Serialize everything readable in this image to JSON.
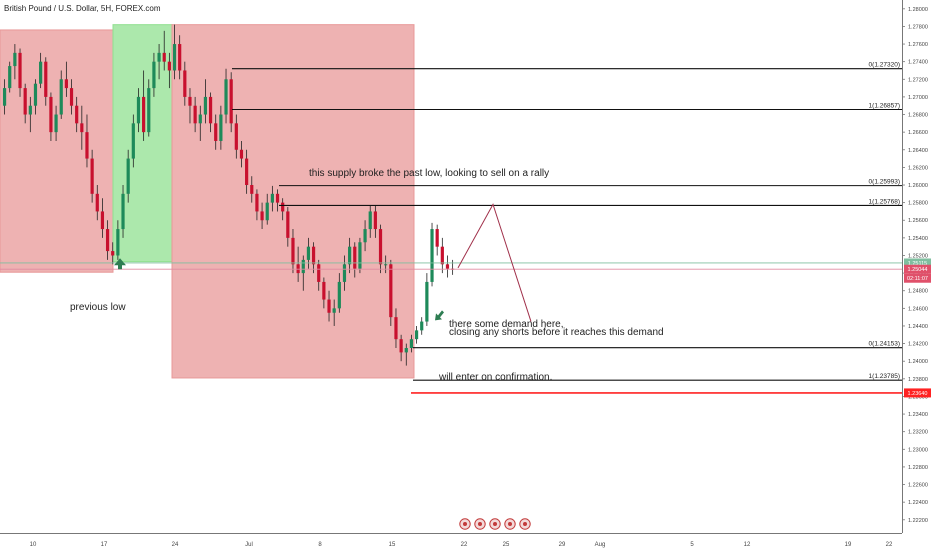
{
  "chart_data": {
    "type": "candlestick",
    "title": "British Pound / U.S. Dollar, 5H, FOREX.com",
    "ylim": [
      1.2205,
      1.281
    ],
    "y_ticks": [
      1.222,
      1.224,
      1.226,
      1.228,
      1.23,
      1.232,
      1.234,
      1.236,
      1.238,
      1.24,
      1.242,
      1.244,
      1.246,
      1.248,
      1.25,
      1.252,
      1.254,
      1.256,
      1.258,
      1.26,
      1.262,
      1.264,
      1.266,
      1.268,
      1.27,
      1.272,
      1.274,
      1.276,
      1.278,
      1.28
    ],
    "x_ticks": [
      "10",
      "17",
      "24",
      "Jul",
      "8",
      "15",
      "22",
      "25",
      "29",
      "Aug",
      "5",
      "12",
      "19",
      "22"
    ],
    "price_badges": [
      {
        "value": "1.25115",
        "color": "#7fbf9f"
      },
      {
        "value": "1.25044",
        "color": "#e0506a"
      },
      {
        "value": "02:11:07",
        "color": "#e0506a"
      },
      {
        "value": "1.23640",
        "color": "#ff2222"
      }
    ],
    "fib_levels": [
      {
        "label": "0(1.27320)",
        "price": 1.2732
      },
      {
        "label": "1(1.26857)",
        "price": 1.26857
      },
      {
        "label": "0(1.25993)",
        "price": 1.25993
      },
      {
        "label": "1(1.25768)",
        "price": 1.25768
      },
      {
        "label": "0(1.24153)",
        "price": 1.24153
      },
      {
        "label": "1(1.23785)",
        "price": 1.23785
      }
    ],
    "horizontal_lines": [
      {
        "price": 1.25115,
        "color": "#7fbf9f"
      },
      {
        "price": 1.25044,
        "color": "#e08aa0"
      },
      {
        "price": 1.2364,
        "color": "#ff2222"
      }
    ],
    "zones": [
      {
        "type": "supply",
        "color": "#e89898",
        "y_top": 1.2776,
        "y_bottom": 1.2501
      },
      {
        "type": "demand",
        "color": "#90e090",
        "y_top": 1.2782,
        "y_bottom": 1.2513
      },
      {
        "type": "supply",
        "color": "#e89898",
        "y_top": 1.2782,
        "y_bottom": 1.2381
      }
    ],
    "projection_prices": [
      1.2506,
      1.2578,
      1.2445
    ],
    "candles": [
      [
        1.269,
        1.272,
        1.268,
        1.271
      ],
      [
        1.271,
        1.274,
        1.2705,
        1.2735
      ],
      [
        1.2735,
        1.276,
        1.272,
        1.275
      ],
      [
        1.275,
        1.2755,
        1.27,
        1.271
      ],
      [
        1.271,
        1.2715,
        1.267,
        1.268
      ],
      [
        1.268,
        1.27,
        1.266,
        1.269
      ],
      [
        1.269,
        1.272,
        1.268,
        1.2715
      ],
      [
        1.2715,
        1.275,
        1.271,
        1.274
      ],
      [
        1.274,
        1.2745,
        1.269,
        1.27
      ],
      [
        1.27,
        1.2705,
        1.265,
        1.266
      ],
      [
        1.266,
        1.269,
        1.265,
        1.268
      ],
      [
        1.268,
        1.273,
        1.2675,
        1.272
      ],
      [
        1.272,
        1.274,
        1.27,
        1.271
      ],
      [
        1.271,
        1.272,
        1.268,
        1.269
      ],
      [
        1.269,
        1.27,
        1.266,
        1.267
      ],
      [
        1.267,
        1.269,
        1.264,
        1.266
      ],
      [
        1.266,
        1.268,
        1.262,
        1.263
      ],
      [
        1.263,
        1.264,
        1.258,
        1.259
      ],
      [
        1.259,
        1.26,
        1.256,
        1.257
      ],
      [
        1.257,
        1.2585,
        1.254,
        1.255
      ],
      [
        1.255,
        1.256,
        1.2515,
        1.2525
      ],
      [
        1.2525,
        1.2535,
        1.251,
        1.252
      ],
      [
        1.252,
        1.256,
        1.2515,
        1.255
      ],
      [
        1.255,
        1.26,
        1.254,
        1.259
      ],
      [
        1.259,
        1.264,
        1.258,
        1.263
      ],
      [
        1.263,
        1.268,
        1.262,
        1.267
      ],
      [
        1.267,
        1.271,
        1.266,
        1.27
      ],
      [
        1.27,
        1.273,
        1.265,
        1.266
      ],
      [
        1.266,
        1.272,
        1.2655,
        1.271
      ],
      [
        1.271,
        1.275,
        1.27,
        1.274
      ],
      [
        1.274,
        1.276,
        1.272,
        1.275
      ],
      [
        1.275,
        1.2775,
        1.273,
        1.274
      ],
      [
        1.274,
        1.275,
        1.271,
        1.273
      ],
      [
        1.273,
        1.2782,
        1.272,
        1.276
      ],
      [
        1.276,
        1.277,
        1.272,
        1.273
      ],
      [
        1.273,
        1.274,
        1.269,
        1.27
      ],
      [
        1.27,
        1.271,
        1.267,
        1.269
      ],
      [
        1.269,
        1.27,
        1.266,
        1.267
      ],
      [
        1.267,
        1.269,
        1.265,
        1.268
      ],
      [
        1.268,
        1.272,
        1.267,
        1.27
      ],
      [
        1.27,
        1.2705,
        1.266,
        1.267
      ],
      [
        1.267,
        1.268,
        1.264,
        1.265
      ],
      [
        1.265,
        1.269,
        1.264,
        1.268
      ],
      [
        1.268,
        1.2732,
        1.267,
        1.272
      ],
      [
        1.272,
        1.2728,
        1.266,
        1.267
      ],
      [
        1.267,
        1.268,
        1.263,
        1.264
      ],
      [
        1.264,
        1.265,
        1.262,
        1.263
      ],
      [
        1.263,
        1.264,
        1.259,
        1.26
      ],
      [
        1.26,
        1.261,
        1.258,
        1.259
      ],
      [
        1.259,
        1.2595,
        1.256,
        1.257
      ],
      [
        1.257,
        1.258,
        1.255,
        1.256
      ],
      [
        1.256,
        1.259,
        1.2555,
        1.258
      ],
      [
        1.258,
        1.2599,
        1.257,
        1.259
      ],
      [
        1.259,
        1.2595,
        1.257,
        1.258
      ],
      [
        1.258,
        1.2585,
        1.256,
        1.257
      ],
      [
        1.257,
        1.2575,
        1.253,
        1.254
      ],
      [
        1.254,
        1.255,
        1.25,
        1.251
      ],
      [
        1.251,
        1.253,
        1.249,
        1.25
      ],
      [
        1.25,
        1.252,
        1.248,
        1.2515
      ],
      [
        1.2515,
        1.254,
        1.2505,
        1.253
      ],
      [
        1.253,
        1.2535,
        1.25,
        1.251
      ],
      [
        1.251,
        1.2515,
        1.248,
        1.249
      ],
      [
        1.249,
        1.2495,
        1.246,
        1.247
      ],
      [
        1.247,
        1.248,
        1.2445,
        1.2455
      ],
      [
        1.2455,
        1.247,
        1.244,
        1.246
      ],
      [
        1.246,
        1.25,
        1.2455,
        1.249
      ],
      [
        1.249,
        1.252,
        1.248,
        1.251
      ],
      [
        1.251,
        1.254,
        1.25,
        1.253
      ],
      [
        1.253,
        1.2535,
        1.2495,
        1.2505
      ],
      [
        1.2505,
        1.254,
        1.25,
        1.2535
      ],
      [
        1.2535,
        1.256,
        1.2525,
        1.255
      ],
      [
        1.255,
        1.2577,
        1.254,
        1.257
      ],
      [
        1.257,
        1.2577,
        1.254,
        1.255
      ],
      [
        1.255,
        1.2555,
        1.25,
        1.251
      ],
      [
        1.251,
        1.252,
        1.25,
        1.251
      ],
      [
        1.251,
        1.2515,
        1.244,
        1.245
      ],
      [
        1.245,
        1.246,
        1.2415,
        1.2425
      ],
      [
        1.2425,
        1.243,
        1.24,
        1.241
      ],
      [
        1.241,
        1.242,
        1.2395,
        1.2415
      ],
      [
        1.2415,
        1.243,
        1.241,
        1.2425
      ],
      [
        1.2425,
        1.244,
        1.242,
        1.2435
      ],
      [
        1.2435,
        1.245,
        1.243,
        1.2445
      ],
      [
        1.2445,
        1.25,
        1.244,
        1.249
      ],
      [
        1.249,
        1.2557,
        1.2485,
        1.255
      ],
      [
        1.255,
        1.2555,
        1.252,
        1.253
      ],
      [
        1.253,
        1.254,
        1.25,
        1.251
      ],
      [
        1.251,
        1.252,
        1.2495,
        1.2505
      ],
      [
        1.2505,
        1.2515,
        1.2498,
        1.2504
      ]
    ]
  },
  "annotations": {
    "previous_low": "previous low",
    "supply_note": "this supply broke the past low,  looking to sell on a rally",
    "demand_line1": "there some demand here,",
    "demand_line2": "closing any shorts before it reaches this demand",
    "confirmation": "will enter on confirmation."
  }
}
